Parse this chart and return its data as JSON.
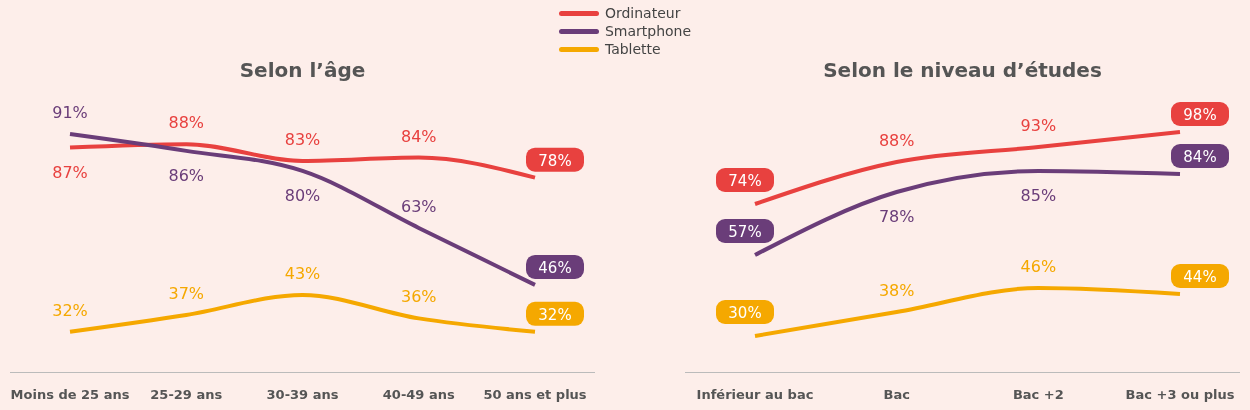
{
  "chart_data": [
    {
      "type": "line",
      "title": "Selon l’âge",
      "categories": [
        "Moins de 25 ans",
        "25-29 ans",
        "30-39 ans",
        "40-49 ans",
        "50 ans et plus"
      ],
      "series": [
        {
          "name": "Ordinateur",
          "color": "#e8413f",
          "values": [
            87,
            88,
            83,
            84,
            78
          ],
          "value_labels": [
            "87%",
            "88%",
            "83%",
            "84%",
            "78%"
          ]
        },
        {
          "name": "Smartphone",
          "color": "#6a3d79",
          "values": [
            91,
            86,
            80,
            63,
            46
          ],
          "value_labels": [
            "91%",
            "86%",
            "80%",
            "63%",
            "46%"
          ]
        },
        {
          "name": "Tablette",
          "color": "#f5a800",
          "values": [
            32,
            37,
            43,
            36,
            32
          ],
          "value_labels": [
            "32%",
            "37%",
            "43%",
            "36%",
            "32%"
          ]
        }
      ],
      "tick_labels": "x",
      "legend": "top",
      "marker": "none"
    },
    {
      "type": "line",
      "title": "Selon le niveau d’études",
      "categories": [
        "Inférieur au bac",
        "Bac",
        "Bac +2",
        "Bac +3 ou plus"
      ],
      "series": [
        {
          "color": "#e8413f",
          "values": [
            74,
            88,
            93,
            98
          ],
          "value_labels": [
            "74%",
            "88%",
            "93%",
            "98%"
          ]
        },
        {
          "color": "#6a3d79",
          "values": [
            57,
            78,
            85,
            84
          ],
          "value_labels": [
            "57%",
            "78%",
            "85%",
            "84%"
          ]
        },
        {
          "color": "#f5a800",
          "values": [
            30,
            38,
            46,
            44
          ],
          "value_labels": [
            "30%",
            "38%",
            "46%",
            "44%"
          ]
        }
      ],
      "tick_labels": "x",
      "marker": "none"
    }
  ]
}
